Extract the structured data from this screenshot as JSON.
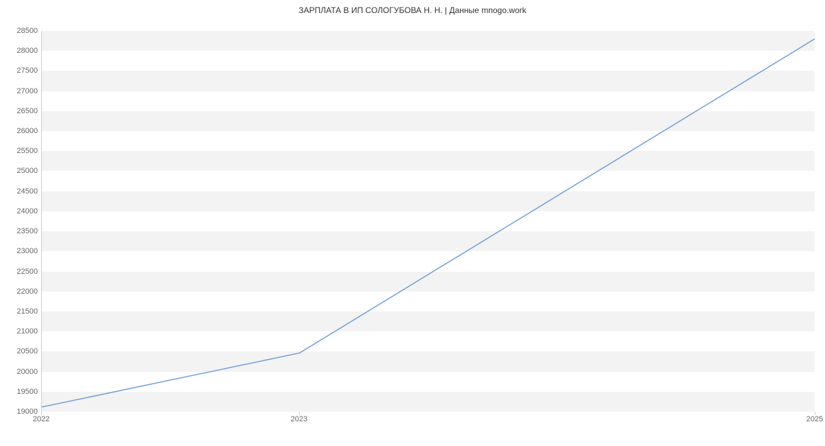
{
  "chart": {
    "type": "line",
    "title": "ЗАРПЛАТА В ИП СОЛОГУБОВА Н. Н. | Данные mnogo.work",
    "title_fontsize": 12,
    "title_color": "#333333",
    "background_color": "#ffffff",
    "plot_band_color": "#f3f3f3",
    "axis_line_color": "#cccccc",
    "label_color": "#666666",
    "label_fontsize": 11,
    "font_family": "Verdana, Geneva, sans-serif",
    "y_axis": {
      "min": 19000,
      "max": 28500,
      "tick_step": 500,
      "ticks": [
        19000,
        19500,
        20000,
        20500,
        21000,
        21500,
        22000,
        22500,
        23000,
        23500,
        24000,
        24500,
        25000,
        25500,
        26000,
        26500,
        27000,
        27500,
        28000,
        28500
      ]
    },
    "x_axis": {
      "ticks": [
        {
          "label": "2022",
          "value": 2022
        },
        {
          "label": "2023",
          "value": 2023
        },
        {
          "label": "2025",
          "value": 2025
        }
      ],
      "min": 2022,
      "max": 2025
    },
    "series": {
      "color": "#6f9fd8",
      "line_width": 1.5,
      "points": [
        {
          "x": 2022,
          "y": 19100
        },
        {
          "x": 2023,
          "y": 20450
        },
        {
          "x": 2025,
          "y": 28300
        }
      ]
    }
  }
}
